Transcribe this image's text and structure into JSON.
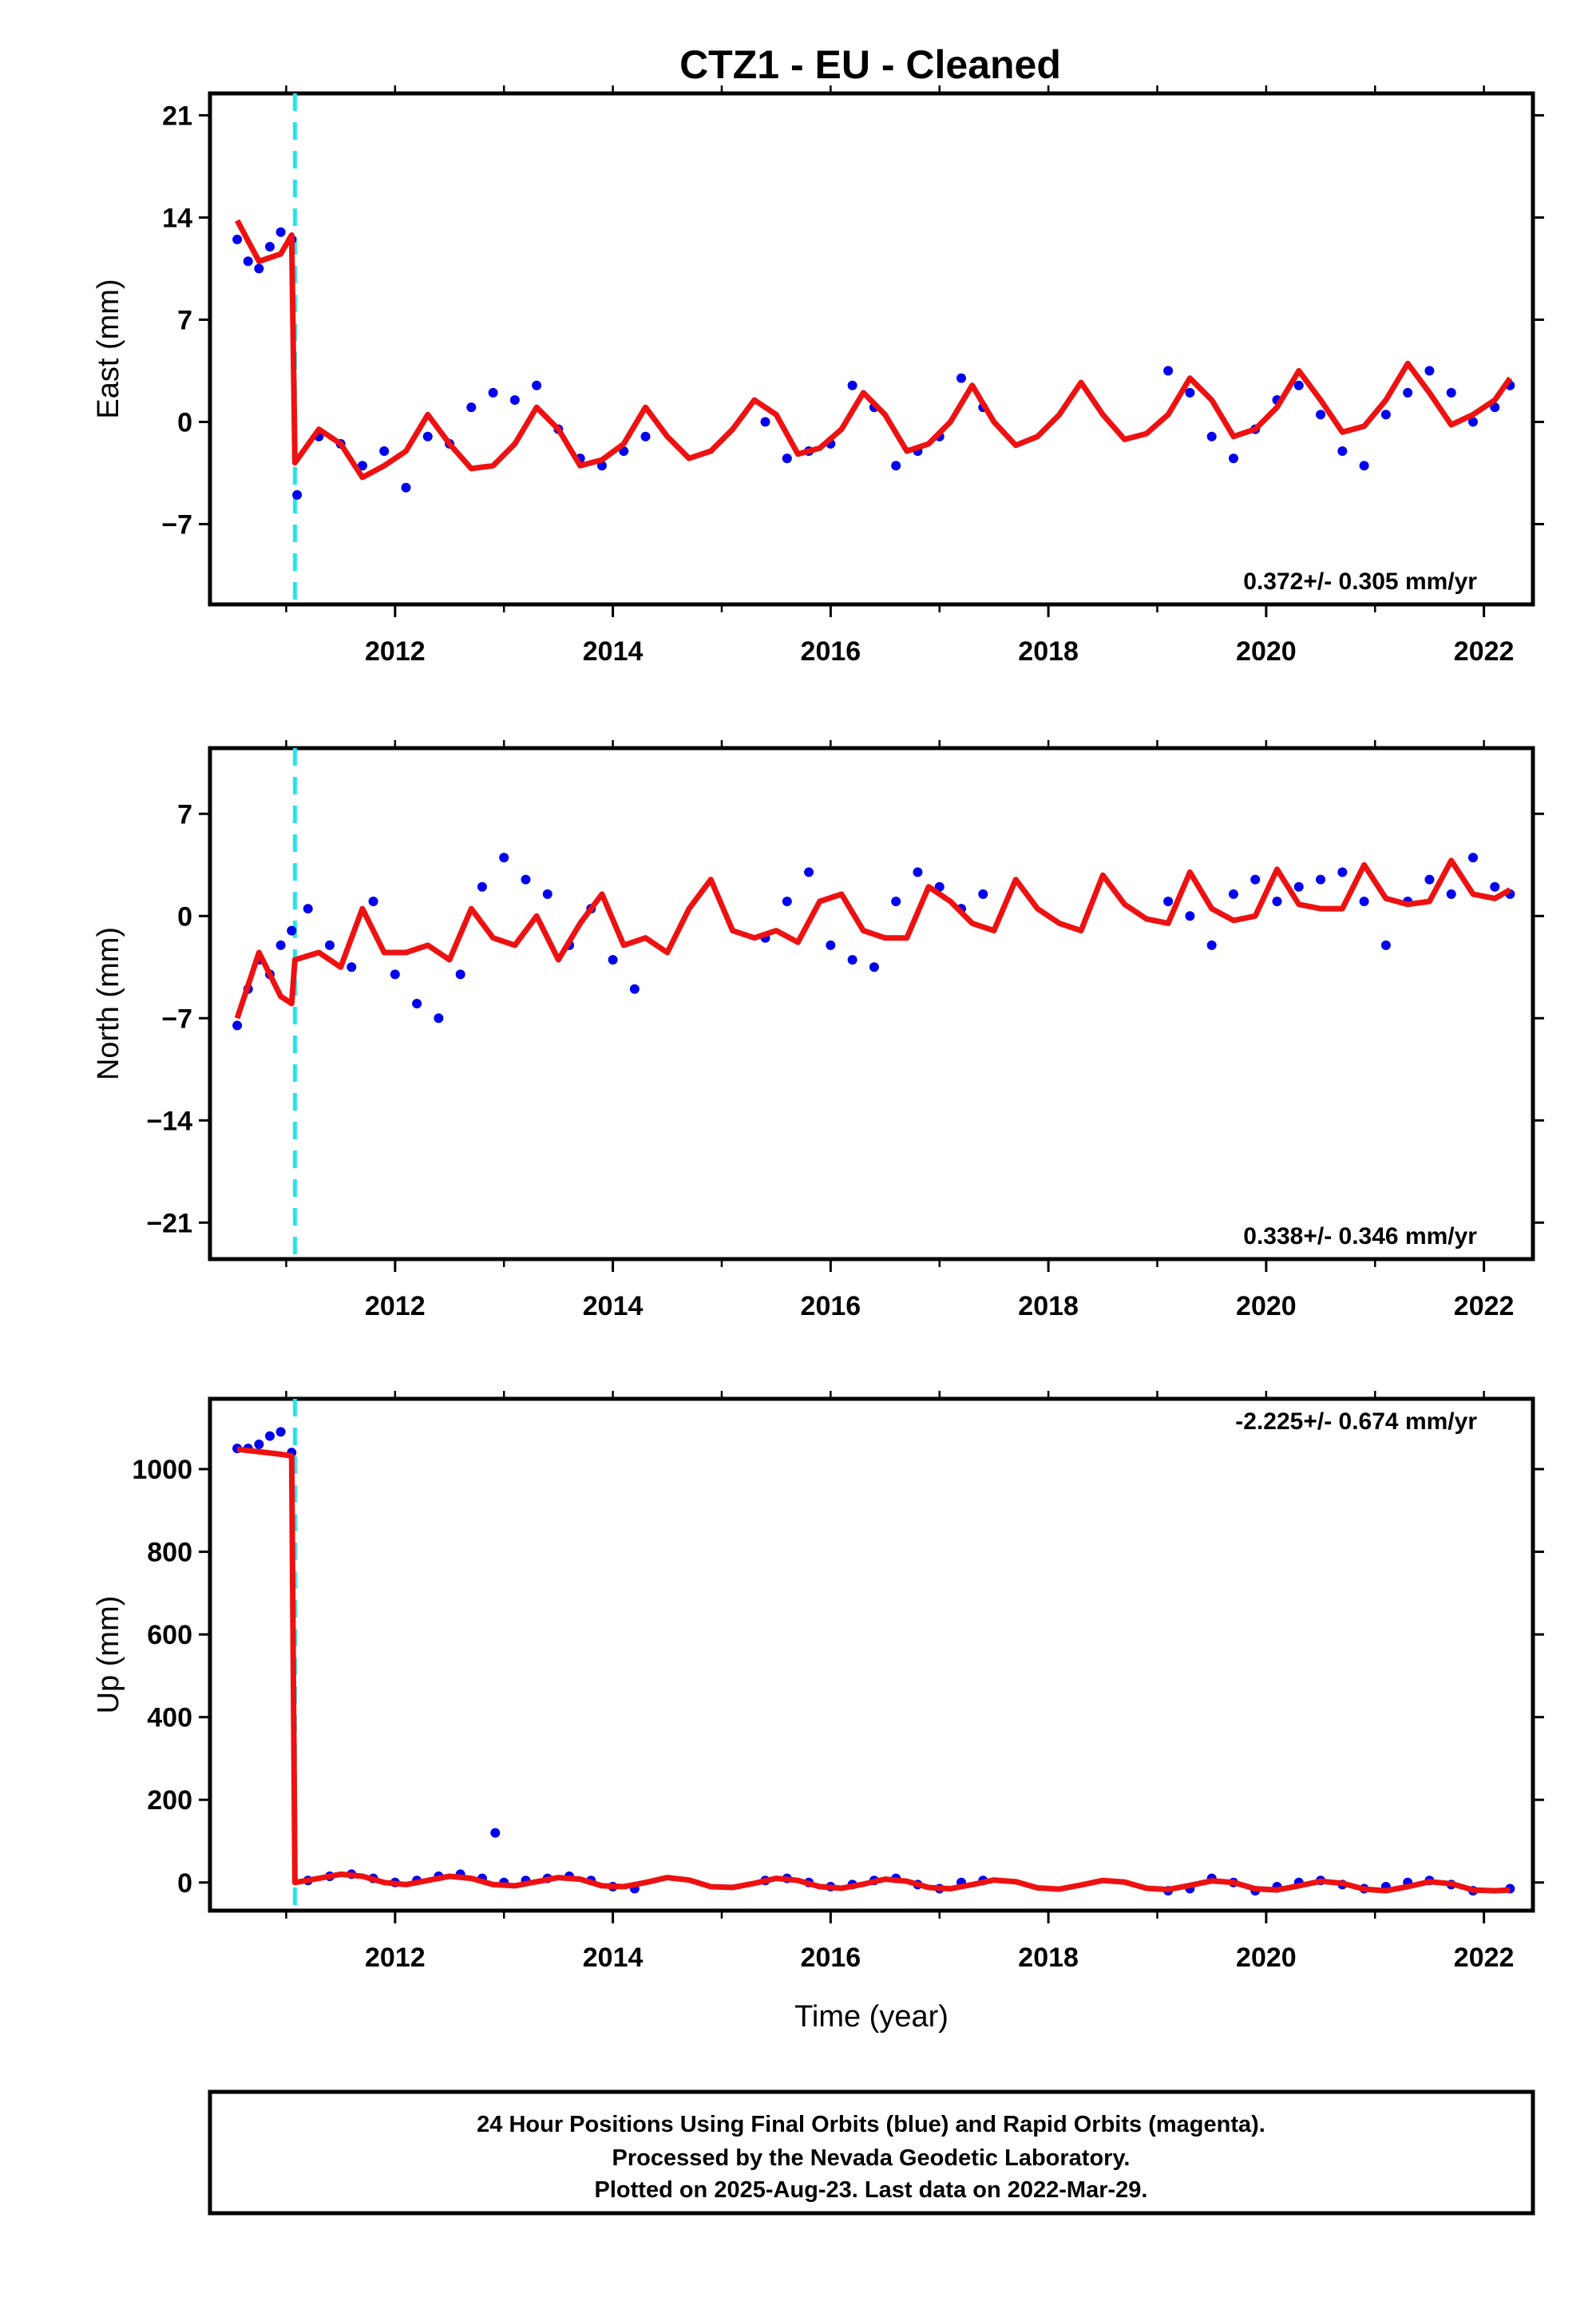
{
  "title": "CTZ1  - EU - Cleaned",
  "colors": {
    "data": "#0000ee",
    "model": "#ee1111",
    "offset": "#22e5f0",
    "frame": "#000000"
  },
  "footer": {
    "lines": [
      "24 Hour Positions Using Final Orbits (blue) and Rapid Orbits (magenta).",
      "Processed by the Nevada Geodetic Laboratory.",
      "Plotted on 2025-Aug-23. Last data on 2022-Mar-29."
    ]
  },
  "chart_data": [
    {
      "type": "scatter",
      "panel": "east",
      "ylabel": "East (mm)",
      "xlabel": "",
      "xlim": [
        2010.3,
        2022.45
      ],
      "ylim": [
        -12.5,
        22.5
      ],
      "xticks": [
        2012,
        2014,
        2016,
        2018,
        2020,
        2022
      ],
      "yticks": [
        -7,
        0,
        7,
        14,
        21
      ],
      "ytick_labels": [
        "−7",
        "0",
        "7",
        "14",
        "21"
      ],
      "rate_text": "0.372+/- 0.305 mm/yr",
      "offset_epoch": 2011.08,
      "series": [
        {
          "values": "daily position estimates (blue dots)",
          "x": [
            2010.55,
            2010.65,
            2010.75,
            2010.85,
            2010.95,
            2011.05,
            2011.1,
            2011.3,
            2011.5,
            2011.7,
            2011.9,
            2012.1,
            2012.3,
            2012.5,
            2012.7,
            2012.9,
            2013.1,
            2013.3,
            2013.5,
            2013.7,
            2013.9,
            2014.1,
            2014.3,
            2015.4,
            2015.6,
            2015.8,
            2016.0,
            2016.2,
            2016.4,
            2016.6,
            2016.8,
            2017.0,
            2017.2,
            2017.4,
            2019.1,
            2019.3,
            2019.5,
            2019.7,
            2019.9,
            2020.1,
            2020.3,
            2020.5,
            2020.7,
            2020.9,
            2021.1,
            2021.3,
            2021.5,
            2021.7,
            2021.9,
            2022.1,
            2022.24
          ],
          "y": [
            12.5,
            11.0,
            10.5,
            12.0,
            13.0,
            12.5,
            -5.0,
            -1.0,
            -1.5,
            -3.0,
            -2.0,
            -4.5,
            -1.0,
            -1.5,
            1.0,
            2.0,
            1.5,
            2.5,
            -0.5,
            -2.5,
            -3.0,
            -2.0,
            -1.0,
            0.0,
            -2.5,
            -2.0,
            -1.5,
            2.5,
            1.0,
            -3.0,
            -2.0,
            -1.0,
            3.0,
            1.0,
            3.5,
            2.0,
            -1.0,
            -2.5,
            -0.5,
            1.5,
            2.5,
            0.5,
            -2.0,
            -3.0,
            0.5,
            2.0,
            3.5,
            2.0,
            0.0,
            1.0,
            2.5
          ]
        },
        {
          "values": "model fit (red line)",
          "x": [
            2010.55,
            2010.75,
            2010.95,
            2011.05,
            2011.08,
            2011.3,
            2011.5,
            2011.7,
            2011.9,
            2012.1,
            2012.3,
            2012.5,
            2012.7,
            2012.9,
            2013.1,
            2013.3,
            2013.5,
            2013.7,
            2013.9,
            2014.1,
            2014.3,
            2014.5,
            2014.7,
            2014.9,
            2015.1,
            2015.3,
            2015.5,
            2015.7,
            2015.9,
            2016.1,
            2016.3,
            2016.5,
            2016.7,
            2016.9,
            2017.1,
            2017.3,
            2017.5,
            2017.7,
            2017.9,
            2018.1,
            2018.3,
            2018.5,
            2018.7,
            2018.9,
            2019.1,
            2019.3,
            2019.5,
            2019.7,
            2019.9,
            2020.1,
            2020.3,
            2020.5,
            2020.7,
            2020.9,
            2021.1,
            2021.3,
            2021.5,
            2021.7,
            2021.9,
            2022.1,
            2022.24
          ],
          "y": [
            13.8,
            11.0,
            11.5,
            12.8,
            -2.8,
            -0.5,
            -1.5,
            -3.8,
            -3.0,
            -2.0,
            0.5,
            -1.5,
            -3.2,
            -3.0,
            -1.5,
            1.0,
            -0.5,
            -3.0,
            -2.6,
            -1.5,
            1.0,
            -1.0,
            -2.5,
            -2.0,
            -0.5,
            1.5,
            0.5,
            -2.2,
            -1.8,
            -0.5,
            2.0,
            0.5,
            -2.0,
            -1.5,
            0.0,
            2.5,
            0.0,
            -1.6,
            -1.0,
            0.5,
            2.7,
            0.5,
            -1.2,
            -0.8,
            0.5,
            3.0,
            1.5,
            -1.0,
            -0.5,
            1.0,
            3.5,
            1.5,
            -0.7,
            -0.3,
            1.5,
            4.0,
            2.0,
            -0.2,
            0.5,
            1.5,
            3.0
          ]
        }
      ]
    },
    {
      "type": "scatter",
      "panel": "north",
      "ylabel": "North (mm)",
      "xlabel": "",
      "xlim": [
        2010.3,
        2022.45
      ],
      "ylim": [
        -23.5,
        11.5
      ],
      "xticks": [
        2012,
        2014,
        2016,
        2018,
        2020,
        2022
      ],
      "yticks": [
        -21,
        -14,
        -7,
        0,
        7
      ],
      "ytick_labels": [
        "−21",
        "−14",
        "−7",
        "0",
        "7"
      ],
      "rate_text": "0.338+/- 0.346 mm/yr",
      "offset_epoch": 2011.08,
      "series": [
        {
          "values": "daily position estimates (blue dots)",
          "x": [
            2010.55,
            2010.65,
            2010.75,
            2010.85,
            2010.95,
            2011.05,
            2011.2,
            2011.4,
            2011.6,
            2011.8,
            2012.0,
            2012.2,
            2012.4,
            2012.6,
            2012.8,
            2013.0,
            2013.2,
            2013.4,
            2013.6,
            2013.8,
            2014.0,
            2014.2,
            2015.4,
            2015.6,
            2015.8,
            2016.0,
            2016.2,
            2016.4,
            2016.6,
            2016.8,
            2017.0,
            2017.2,
            2017.4,
            2019.1,
            2019.3,
            2019.5,
            2019.7,
            2019.9,
            2020.1,
            2020.3,
            2020.5,
            2020.7,
            2020.9,
            2021.1,
            2021.3,
            2021.5,
            2021.7,
            2021.9,
            2022.1,
            2022.24
          ],
          "y": [
            -7.5,
            -5.0,
            -3.0,
            -4.0,
            -2.0,
            -1.0,
            0.5,
            -2.0,
            -3.5,
            1.0,
            -4.0,
            -6.0,
            -7.0,
            -4.0,
            2.0,
            4.0,
            2.5,
            1.5,
            -2.0,
            0.5,
            -3.0,
            -5.0,
            -1.5,
            1.0,
            3.0,
            -2.0,
            -3.0,
            -3.5,
            1.0,
            3.0,
            2.0,
            0.5,
            1.5,
            1.0,
            0.0,
            -2.0,
            1.5,
            2.5,
            1.0,
            2.0,
            2.5,
            3.0,
            1.0,
            -2.0,
            1.0,
            2.5,
            1.5,
            4.0,
            2.0,
            1.5
          ]
        },
        {
          "values": "model fit (red line)",
          "x": [
            2010.55,
            2010.75,
            2010.95,
            2011.05,
            2011.08,
            2011.3,
            2011.5,
            2011.7,
            2011.9,
            2012.1,
            2012.3,
            2012.5,
            2012.7,
            2012.9,
            2013.1,
            2013.3,
            2013.5,
            2013.7,
            2013.9,
            2014.1,
            2014.3,
            2014.5,
            2014.7,
            2014.9,
            2015.1,
            2015.3,
            2015.5,
            2015.7,
            2015.9,
            2016.1,
            2016.3,
            2016.5,
            2016.7,
            2016.9,
            2017.1,
            2017.3,
            2017.5,
            2017.7,
            2017.9,
            2018.1,
            2018.3,
            2018.5,
            2018.7,
            2018.9,
            2019.1,
            2019.3,
            2019.5,
            2019.7,
            2019.9,
            2020.1,
            2020.3,
            2020.5,
            2020.7,
            2020.9,
            2021.1,
            2021.3,
            2021.5,
            2021.7,
            2021.9,
            2022.1,
            2022.24
          ],
          "y": [
            -7.0,
            -2.5,
            -5.5,
            -6.0,
            -3.0,
            -2.5,
            -3.5,
            0.5,
            -2.5,
            -2.5,
            -2.0,
            -3.0,
            0.5,
            -1.5,
            -2.0,
            0.0,
            -3.0,
            -0.5,
            1.5,
            -2.0,
            -1.5,
            -2.5,
            0.5,
            2.5,
            -1.0,
            -1.5,
            -1.0,
            -1.8,
            1.0,
            1.5,
            -1.0,
            -1.5,
            -1.5,
            2.0,
            1.0,
            -0.5,
            -1.0,
            2.5,
            0.5,
            -0.5,
            -1.0,
            2.8,
            0.8,
            -0.2,
            -0.5,
            3.0,
            0.5,
            -0.3,
            0.0,
            3.2,
            0.8,
            0.5,
            0.5,
            3.5,
            1.2,
            0.8,
            1.0,
            3.8,
            1.5,
            1.2,
            1.8
          ]
        }
      ]
    },
    {
      "type": "scatter",
      "panel": "up",
      "ylabel": "Up (mm)",
      "xlabel": "Time (year)",
      "xlim": [
        2010.3,
        2022.45
      ],
      "ylim": [
        -68,
        1170
      ],
      "xticks": [
        2012,
        2014,
        2016,
        2018,
        2020,
        2022
      ],
      "yticks": [
        0,
        200,
        400,
        600,
        800,
        1000
      ],
      "ytick_labels": [
        "0",
        "200",
        "400",
        "600",
        "800",
        "1000"
      ],
      "rate_text": "-2.225+/- 0.674 mm/yr",
      "offset_epoch": 2011.08,
      "series": [
        {
          "values": "daily position estimates (blue dots)",
          "x": [
            2010.55,
            2010.65,
            2010.75,
            2010.85,
            2010.95,
            2011.05,
            2011.2,
            2011.4,
            2011.6,
            2011.8,
            2012.0,
            2012.2,
            2012.4,
            2012.6,
            2012.8,
            2012.92,
            2013.0,
            2013.2,
            2013.4,
            2013.6,
            2013.8,
            2014.0,
            2014.2,
            2015.4,
            2015.6,
            2015.8,
            2016.0,
            2016.2,
            2016.4,
            2016.6,
            2016.8,
            2017.0,
            2017.2,
            2017.4,
            2019.1,
            2019.3,
            2019.5,
            2019.7,
            2019.9,
            2020.1,
            2020.3,
            2020.5,
            2020.7,
            2020.9,
            2021.1,
            2021.3,
            2021.5,
            2021.7,
            2021.9,
            2022.24
          ],
          "y": [
            1050,
            1050,
            1060,
            1080,
            1090,
            1040,
            5,
            15,
            20,
            10,
            0,
            5,
            15,
            20,
            10,
            120,
            0,
            5,
            10,
            15,
            5,
            -10,
            -15,
            5,
            10,
            0,
            -10,
            -5,
            5,
            10,
            -5,
            -15,
            0,
            5,
            -20,
            -15,
            10,
            0,
            -20,
            -10,
            0,
            5,
            -5,
            -15,
            -10,
            0,
            5,
            -5,
            -20,
            -15
          ]
        },
        {
          "values": "model fit (red line)",
          "x": [
            2010.55,
            2010.75,
            2010.95,
            2011.05,
            2011.08,
            2011.3,
            2011.5,
            2011.7,
            2011.9,
            2012.1,
            2012.3,
            2012.5,
            2012.7,
            2012.9,
            2013.1,
            2013.3,
            2013.5,
            2013.7,
            2013.9,
            2014.1,
            2014.3,
            2014.5,
            2014.7,
            2014.9,
            2015.1,
            2015.3,
            2015.5,
            2015.7,
            2015.9,
            2016.1,
            2016.3,
            2016.5,
            2016.7,
            2016.9,
            2017.1,
            2017.3,
            2017.5,
            2017.7,
            2017.9,
            2018.1,
            2018.3,
            2018.5,
            2018.7,
            2018.9,
            2019.1,
            2019.3,
            2019.5,
            2019.7,
            2019.9,
            2020.1,
            2020.3,
            2020.5,
            2020.7,
            2020.9,
            2021.1,
            2021.3,
            2021.5,
            2021.7,
            2021.9,
            2022.1,
            2022.24
          ],
          "y": [
            1048,
            1042,
            1036,
            1032,
            0,
            10,
            20,
            15,
            0,
            -5,
            5,
            15,
            10,
            -5,
            -8,
            2,
            12,
            8,
            -8,
            -10,
            0,
            12,
            6,
            -10,
            -12,
            -2,
            10,
            5,
            -10,
            -14,
            -4,
            8,
            3,
            -12,
            -15,
            -5,
            6,
            2,
            -13,
            -16,
            -6,
            5,
            1,
            -14,
            -17,
            -7,
            4,
            0,
            -15,
            -18,
            -8,
            3,
            -2,
            -16,
            -20,
            -10,
            2,
            -3,
            -18,
            -20,
            -18
          ]
        }
      ]
    }
  ]
}
